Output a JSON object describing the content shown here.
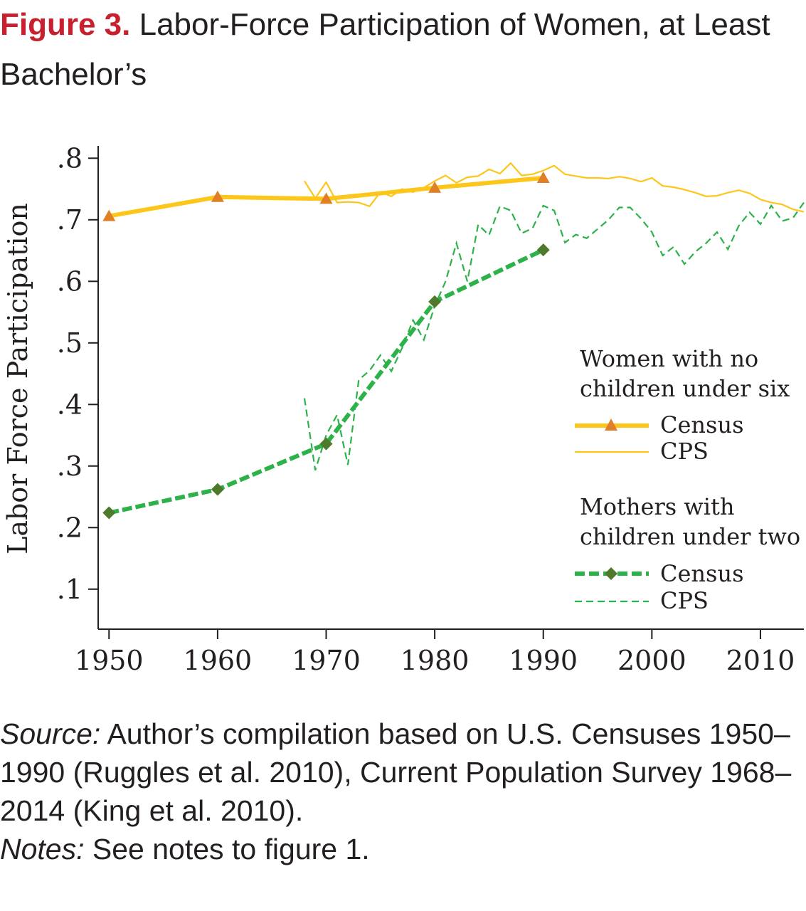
{
  "figure": {
    "label": "Figure 3.",
    "title": "Labor-Force Participation of Women, at Least Bachelor’s"
  },
  "footer": {
    "source_label": "Source:",
    "source_text": "Author’s compilation based on U.S. Censuses 1950–1990 (Ruggles et al. 2010), Current Population Survey 1968–2014 (King et al. 2010).",
    "notes_label": "Notes:",
    "notes_text": "See notes to figure 1."
  },
  "colors": {
    "no_children": "#fcc61a",
    "no_children_marker": "#e07f26",
    "mothers": "#2db24a",
    "mothers_marker": "#4f7a2c",
    "axis": "#231f20"
  },
  "chart_data": {
    "type": "line",
    "title": "",
    "xlabel": "",
    "ylabel": "Labor Force Participation",
    "xlim": [
      1949,
      2014
    ],
    "ylim": [
      0.035,
      0.82
    ],
    "x_ticks": [
      1950,
      1960,
      1970,
      1980,
      1990,
      2000,
      2010
    ],
    "y_ticks": [
      0.1,
      0.2,
      0.3,
      0.4,
      0.5,
      0.6,
      0.7,
      0.8
    ],
    "y_tick_labels": [
      ".1",
      ".2",
      ".3",
      ".4",
      ".5",
      ".6",
      ".7",
      ".8"
    ],
    "grid": false,
    "legend_position": "right",
    "legend": {
      "group1_title": "Women with no children under six",
      "group2_title": "Mothers with children under two",
      "census_label": "Census",
      "cps_label": "CPS"
    },
    "series": [
      {
        "name": "Census",
        "group": "Women with no children under six",
        "style": "thick-solid-triangle",
        "x": [
          1950,
          1960,
          1970,
          1980,
          1990
        ],
        "y": [
          0.706,
          0.737,
          0.734,
          0.752,
          0.768
        ]
      },
      {
        "name": "CPS",
        "group": "Women with no children under six",
        "style": "thin-solid",
        "x": [
          1968,
          1969,
          1970,
          1971,
          1972,
          1973,
          1974,
          1975,
          1976,
          1977,
          1978,
          1979,
          1980,
          1981,
          1982,
          1983,
          1984,
          1985,
          1986,
          1987,
          1988,
          1989,
          1990,
          1991,
          1992,
          1993,
          1994,
          1995,
          1996,
          1997,
          1998,
          1999,
          2000,
          2001,
          2002,
          2003,
          2004,
          2005,
          2006,
          2007,
          2008,
          2009,
          2010,
          2011,
          2012,
          2013,
          2014
        ],
        "y": [
          0.763,
          0.735,
          0.761,
          0.728,
          0.729,
          0.728,
          0.722,
          0.745,
          0.738,
          0.75,
          0.745,
          0.752,
          0.763,
          0.772,
          0.76,
          0.769,
          0.771,
          0.782,
          0.775,
          0.792,
          0.772,
          0.774,
          0.78,
          0.788,
          0.774,
          0.771,
          0.768,
          0.768,
          0.767,
          0.77,
          0.767,
          0.762,
          0.768,
          0.755,
          0.753,
          0.749,
          0.744,
          0.738,
          0.739,
          0.744,
          0.748,
          0.743,
          0.733,
          0.728,
          0.725,
          0.717,
          0.713
        ]
      },
      {
        "name": "Census",
        "group": "Mothers with children under two",
        "style": "thick-dashed-diamond",
        "x": [
          1950,
          1960,
          1970,
          1980,
          1990
        ],
        "y": [
          0.224,
          0.262,
          0.336,
          0.567,
          0.651
        ]
      },
      {
        "name": "CPS",
        "group": "Mothers with children under two",
        "style": "thin-dashed",
        "x": [
          1968,
          1969,
          1970,
          1971,
          1972,
          1973,
          1974,
          1975,
          1976,
          1977,
          1978,
          1979,
          1980,
          1981,
          1982,
          1983,
          1984,
          1985,
          1986,
          1987,
          1988,
          1989,
          1990,
          1991,
          1992,
          1993,
          1994,
          1995,
          1996,
          1997,
          1998,
          1999,
          2000,
          2001,
          2002,
          2003,
          2004,
          2005,
          2006,
          2007,
          2008,
          2009,
          2010,
          2011,
          2012,
          2013,
          2014
        ],
        "y": [
          0.41,
          0.293,
          0.35,
          0.383,
          0.302,
          0.44,
          0.455,
          0.48,
          0.454,
          0.492,
          0.537,
          0.505,
          0.56,
          0.6,
          0.662,
          0.6,
          0.692,
          0.675,
          0.722,
          0.715,
          0.678,
          0.686,
          0.723,
          0.715,
          0.663,
          0.676,
          0.67,
          0.685,
          0.7,
          0.72,
          0.72,
          0.702,
          0.68,
          0.642,
          0.656,
          0.628,
          0.648,
          0.662,
          0.68,
          0.652,
          0.69,
          0.712,
          0.693,
          0.723,
          0.698,
          0.703,
          0.728
        ]
      }
    ]
  }
}
